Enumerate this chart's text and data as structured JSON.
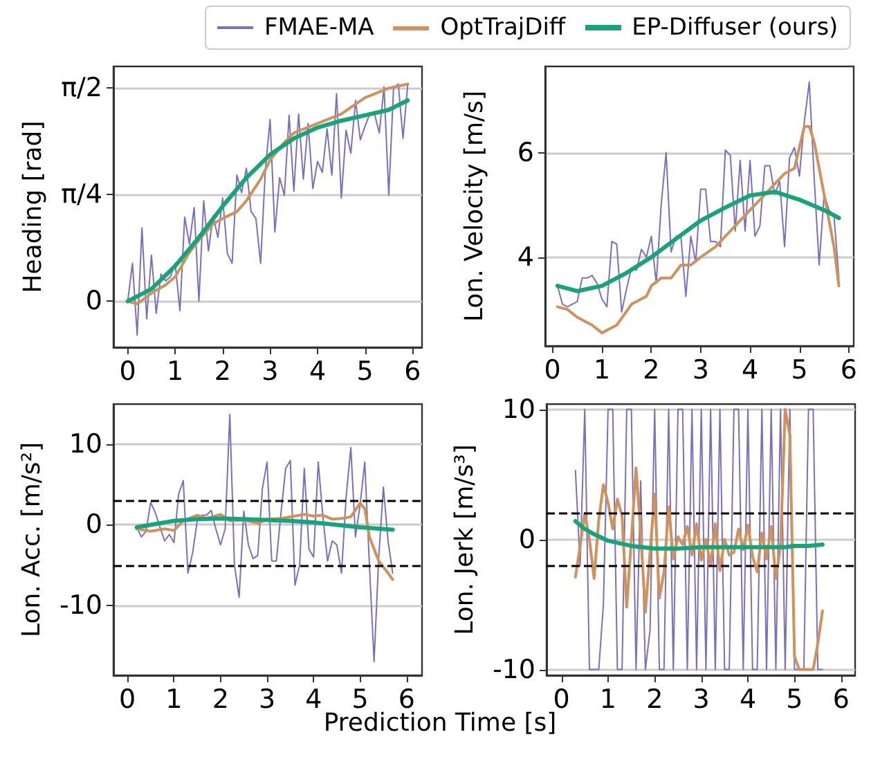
{
  "chart_data": [
    {
      "type": "line",
      "ylabel": "Heading [rad]",
      "xlabel": "Prediction Time [s]",
      "xlim": [
        -0.3,
        6.2
      ],
      "xticks": [
        0,
        1,
        2,
        3,
        4,
        5,
        6
      ],
      "ylim": [
        -0.34,
        1.73
      ],
      "yticks": [
        {
          "value": 0,
          "label": "0"
        },
        {
          "value": 0.785,
          "label": "π/4"
        },
        {
          "value": 1.571,
          "label": "π/2"
        }
      ],
      "grid": "y",
      "legend": "top",
      "marker": "none",
      "line_style": "solid",
      "series": [
        {
          "name": "FMAE-MA",
          "color": "#7b6fbf",
          "x": [
            0,
            0.1,
            0.2,
            0.3,
            0.4,
            0.5,
            0.6,
            0.7,
            0.8,
            0.9,
            1.0,
            1.1,
            1.2,
            1.3,
            1.4,
            1.5,
            1.6,
            1.7,
            1.8,
            1.9,
            2.0,
            2.1,
            2.2,
            2.3,
            2.4,
            2.5,
            2.6,
            2.7,
            2.8,
            2.9,
            3.0,
            3.1,
            3.2,
            3.3,
            3.4,
            3.5,
            3.6,
            3.7,
            3.8,
            3.9,
            4.0,
            4.1,
            4.2,
            4.3,
            4.4,
            4.5,
            4.6,
            4.7,
            4.8,
            4.9,
            5.0,
            5.1,
            5.2,
            5.3,
            5.4,
            5.5,
            5.6,
            5.7,
            5.8,
            5.9
          ],
          "values": [
            0,
            0.28,
            -0.25,
            0.54,
            -0.13,
            0.34,
            -0.09,
            0.2,
            0.15,
            0.18,
            0.28,
            -0.07,
            0.62,
            0.42,
            0.69,
            0.0,
            0.74,
            0.37,
            0.63,
            0.47,
            0.76,
            0.35,
            0.28,
            0.93,
            0.8,
            0.98,
            0.66,
            0.61,
            0.28,
            0.97,
            1.34,
            0.51,
            0.91,
            0.78,
            1.37,
            0.81,
            1.38,
            0.9,
            1.31,
            0.83,
            1.03,
            0.95,
            1.27,
            0.93,
            1.53,
            0.76,
            1.26,
            1.09,
            1.48,
            1.19,
            1.29,
            1.38,
            1.38,
            1.24,
            1.58,
            0.78,
            1.57,
            1.6,
            1.2,
            1.6
          ]
        },
        {
          "name": "OptTrajDiff",
          "color": "#d0925a",
          "x": [
            0,
            0.2,
            0.5,
            0.8,
            1.0,
            1.3,
            1.5,
            1.8,
            2.0,
            2.3,
            2.5,
            2.8,
            3.0,
            3.3,
            3.5,
            4.0,
            4.5,
            5.0,
            5.5,
            5.9
          ],
          "values": [
            0,
            -0.02,
            0.06,
            0.12,
            0.18,
            0.36,
            0.45,
            0.57,
            0.61,
            0.66,
            0.74,
            0.9,
            1.04,
            1.17,
            1.24,
            1.31,
            1.38,
            1.5,
            1.57,
            1.6
          ]
        },
        {
          "name": "EP-Diffuser (ours)",
          "color": "#16a47a",
          "x": [
            0,
            0.5,
            1.0,
            1.5,
            2.0,
            2.5,
            3.0,
            3.5,
            4.0,
            4.5,
            5.0,
            5.5,
            5.9
          ],
          "values": [
            0,
            0.09,
            0.26,
            0.47,
            0.7,
            0.91,
            1.08,
            1.2,
            1.28,
            1.33,
            1.37,
            1.41,
            1.48
          ]
        }
      ]
    },
    {
      "type": "line",
      "ylabel": "Lon. Velocity [m/s]",
      "xlim": [
        -0.15,
        6.1
      ],
      "xticks": [
        0,
        1,
        2,
        3,
        4,
        5,
        6
      ],
      "ylim": [
        2.3,
        7.65
      ],
      "yticks": [
        4,
        6
      ],
      "grid": "y",
      "legend": false,
      "marker": "none",
      "line_style": "solid",
      "series": [
        {
          "color": "#7b6fbf",
          "x": [
            0.1,
            0.2,
            0.3,
            0.4,
            0.5,
            0.6,
            0.7,
            0.8,
            0.9,
            1.0,
            1.1,
            1.2,
            1.3,
            1.4,
            1.5,
            1.6,
            1.7,
            1.8,
            1.9,
            2.0,
            2.1,
            2.2,
            2.3,
            2.4,
            2.5,
            2.6,
            2.7,
            2.8,
            2.9,
            3.0,
            3.1,
            3.2,
            3.3,
            3.4,
            3.5,
            3.6,
            3.7,
            3.8,
            3.9,
            4.0,
            4.1,
            4.2,
            4.3,
            4.4,
            4.5,
            4.6,
            4.7,
            4.8,
            4.9,
            5.0,
            5.1,
            5.2,
            5.3,
            5.4,
            5.5,
            5.6,
            5.7,
            5.8
          ],
          "values": [
            3.45,
            3.1,
            3.05,
            3.1,
            3.15,
            3.6,
            3.6,
            3.65,
            3.5,
            3.2,
            3.05,
            4.3,
            4.25,
            2.95,
            3.4,
            3.8,
            3.75,
            4.15,
            4.0,
            4.4,
            3.5,
            5.0,
            6.0,
            4.1,
            4.4,
            4.4,
            3.25,
            4.4,
            3.9,
            5.3,
            5.3,
            4.3,
            4.3,
            4.2,
            6.05,
            5.95,
            4.5,
            5.85,
            4.5,
            5.85,
            4.4,
            4.6,
            5.75,
            5.75,
            5.2,
            5.45,
            4.2,
            5.9,
            6.1,
            5.55,
            6.6,
            7.35,
            5.5,
            3.85,
            5.2,
            4.9,
            4.8,
            3.6
          ]
        },
        {
          "color": "#d0925a",
          "x": [
            0.1,
            0.3,
            0.5,
            0.8,
            1.0,
            1.3,
            1.6,
            1.9,
            2.0,
            2.2,
            2.4,
            2.6,
            2.8,
            3.0,
            3.3,
            3.6,
            3.9,
            4.2,
            4.5,
            4.7,
            4.9,
            5.0,
            5.1,
            5.2,
            5.3,
            5.5,
            5.7,
            5.8
          ],
          "values": [
            3.05,
            3.0,
            2.85,
            2.7,
            2.55,
            2.7,
            3.1,
            3.25,
            3.45,
            3.6,
            3.6,
            3.85,
            3.85,
            4.0,
            4.2,
            4.5,
            4.8,
            5.1,
            5.4,
            5.6,
            5.7,
            6.1,
            6.5,
            6.5,
            6.2,
            5.2,
            4.2,
            3.45
          ]
        },
        {
          "color": "#16a47a",
          "x": [
            0.1,
            0.5,
            1.0,
            1.5,
            2.0,
            2.5,
            3.0,
            3.5,
            4.0,
            4.5,
            5.0,
            5.5,
            5.8
          ],
          "values": [
            3.45,
            3.35,
            3.45,
            3.7,
            4.0,
            4.35,
            4.7,
            4.95,
            5.18,
            5.25,
            5.1,
            4.9,
            4.75
          ]
        }
      ]
    },
    {
      "type": "line",
      "ylabel": "Lon. Acc. [m/s²]",
      "xlim": [
        -0.3,
        6.33
      ],
      "xticks": [
        0,
        1,
        2,
        3,
        4,
        5,
        6
      ],
      "ylim": [
        -18.7,
        15
      ],
      "yticks": [
        -10,
        0,
        10
      ],
      "grid": "y",
      "legend": false,
      "marker": "none",
      "line_style": "solid",
      "ref_lines": [
        {
          "axis": "y",
          "value": 3,
          "color": "#000000",
          "line_style": "dashed"
        },
        {
          "axis": "y",
          "value": -5,
          "color": "#000000",
          "line_style": "dashed"
        }
      ],
      "series": [
        {
          "color": "#7b6fbf",
          "x": [
            0.2,
            0.3,
            0.4,
            0.5,
            0.6,
            0.7,
            0.8,
            0.9,
            1.0,
            1.1,
            1.2,
            1.3,
            1.4,
            1.5,
            1.6,
            1.7,
            1.8,
            1.9,
            2.0,
            2.1,
            2.2,
            2.3,
            2.4,
            2.5,
            2.6,
            2.7,
            2.8,
            2.9,
            3.0,
            3.1,
            3.2,
            3.3,
            3.4,
            3.5,
            3.6,
            3.7,
            3.8,
            3.9,
            4.0,
            4.1,
            4.2,
            4.3,
            4.4,
            4.5,
            4.6,
            4.7,
            4.8,
            4.9,
            5.0,
            5.1,
            5.2,
            5.3,
            5.4,
            5.5,
            5.6,
            5.7
          ],
          "values": [
            -0.3,
            -1.5,
            -0.8,
            2.8,
            1.5,
            -0.3,
            -2.0,
            -1.2,
            -2.2,
            3.8,
            5.5,
            -6.0,
            -3.5,
            0.5,
            1.2,
            1.2,
            1.8,
            -0.5,
            -2.5,
            -0.5,
            13.7,
            -5.0,
            -9.0,
            1.7,
            -2.5,
            -4.2,
            -3.8,
            4.5,
            7.8,
            -4.5,
            -4.5,
            1.5,
            7.0,
            8.0,
            -7.5,
            -5.0,
            7.0,
            -3.0,
            -4.0,
            7.8,
            1.0,
            -4.5,
            -2.0,
            -2.5,
            -6.0,
            3.5,
            9.6,
            -1.5,
            2.5,
            7.8,
            -5.0,
            -17.0,
            -4.0,
            4.7,
            -2.0,
            -6.0
          ]
        },
        {
          "color": "#d0925a",
          "x": [
            0.2,
            0.5,
            0.8,
            1.0,
            1.2,
            1.5,
            1.7,
            2.0,
            2.2,
            2.5,
            2.8,
            3.0,
            3.3,
            3.6,
            3.8,
            4.0,
            4.2,
            4.4,
            4.6,
            4.8,
            5.0,
            5.1,
            5.2,
            5.4,
            5.6,
            5.7
          ],
          "values": [
            -0.5,
            -0.8,
            -0.5,
            -0.7,
            0.5,
            1.2,
            0.8,
            1.3,
            0.5,
            0.6,
            0.2,
            0.7,
            0.8,
            1.1,
            1.3,
            1.1,
            1.2,
            0.7,
            0.8,
            1.0,
            2.7,
            2.0,
            -1.5,
            -4.5,
            -6.0,
            -6.8
          ]
        },
        {
          "color": "#16a47a",
          "x": [
            0.2,
            0.5,
            1.0,
            1.5,
            2.0,
            2.5,
            3.0,
            3.5,
            4.0,
            4.5,
            5.0,
            5.7
          ],
          "values": [
            -0.3,
            0.0,
            0.5,
            0.7,
            0.8,
            0.7,
            0.6,
            0.5,
            0.3,
            0.0,
            -0.3,
            -0.6
          ]
        }
      ]
    },
    {
      "type": "line",
      "ylabel": "Lon. Jerk [m/s³]",
      "xlim": [
        -0.32,
        6.3
      ],
      "xticks": [
        0,
        1,
        2,
        3,
        4,
        5,
        6
      ],
      "ylim": [
        -10.45,
        10.4
      ],
      "yticks": [
        -10,
        0,
        10
      ],
      "grid": "y",
      "legend": false,
      "marker": "none",
      "line_style": "solid",
      "ref_lines": [
        {
          "axis": "y",
          "value": 2,
          "color": "#000000",
          "line_style": "dashed"
        },
        {
          "axis": "y",
          "value": -2,
          "color": "#000000",
          "line_style": "dashed"
        }
      ],
      "series": [
        {
          "color": "#7b6fbf",
          "x": [
            0.3,
            0.4,
            0.5,
            0.6,
            0.7,
            0.8,
            0.9,
            1.0,
            1.1,
            1.2,
            1.3,
            1.4,
            1.5,
            1.6,
            1.7,
            1.8,
            1.9,
            2.0,
            2.1,
            2.2,
            2.3,
            2.4,
            2.5,
            2.6,
            2.7,
            2.8,
            2.9,
            3.0,
            3.1,
            3.2,
            3.3,
            3.4,
            3.5,
            3.6,
            3.7,
            3.8,
            3.9,
            4.0,
            4.1,
            4.2,
            4.3,
            4.4,
            4.5,
            4.6,
            4.7,
            4.8,
            4.9,
            5.0,
            5.1,
            5.2,
            5.3,
            5.4,
            5.5,
            5.6
          ],
          "values": [
            5.3,
            -2,
            10,
            -10,
            -10,
            -10,
            -5,
            10,
            10,
            -10,
            -10,
            10,
            10,
            -10,
            4.5,
            -10,
            -7,
            10,
            -10,
            -10,
            10,
            -10,
            10,
            10,
            -10,
            10,
            -10,
            10,
            -10,
            10,
            -10,
            10,
            -10,
            -10,
            10,
            10,
            -10,
            10,
            -10,
            -10,
            10,
            -10,
            10,
            -10,
            10,
            -10,
            10,
            -10,
            -10,
            -10,
            10,
            10,
            -10,
            -10
          ]
        },
        {
          "color": "#d0925a",
          "x": [
            0.3,
            0.4,
            0.5,
            0.6,
            0.7,
            0.8,
            0.9,
            1.0,
            1.1,
            1.2,
            1.3,
            1.4,
            1.5,
            1.6,
            1.7,
            1.8,
            1.9,
            2.0,
            2.1,
            2.2,
            2.3,
            2.4,
            2.5,
            2.6,
            2.7,
            2.8,
            2.9,
            3.0,
            3.1,
            3.2,
            3.3,
            3.4,
            3.5,
            3.6,
            3.7,
            3.8,
            3.9,
            4.0,
            4.1,
            4.2,
            4.3,
            4.4,
            4.5,
            4.6,
            4.7,
            4.8,
            4.9,
            5.0,
            5.1,
            5.2,
            5.3,
            5.4,
            5.5,
            5.6
          ],
          "values": [
            -2.9,
            -0.5,
            2.0,
            0.0,
            -3.0,
            1.5,
            4.2,
            2.8,
            0.8,
            3.1,
            1.8,
            -5.2,
            0.0,
            5.5,
            0.5,
            -5.6,
            -1.0,
            3.5,
            -4.5,
            -2.5,
            2.5,
            -1.5,
            0.2,
            -0.4,
            1.0,
            -1.2,
            1.2,
            -1.6,
            0.0,
            -2.0,
            1.2,
            -2.4,
            0.0,
            -1.2,
            -1.0,
            0.8,
            -0.8,
            1.1,
            -1.3,
            -2.5,
            0.5,
            -1.5,
            1.0,
            -3.0,
            -0.5,
            10.0,
            8.0,
            -9.0,
            -10.0,
            -10.0,
            -10.0,
            -10.0,
            -8.0,
            -5.5
          ]
        },
        {
          "color": "#16a47a",
          "x": [
            0.3,
            0.5,
            0.7,
            1.0,
            1.5,
            2.0,
            2.5,
            3.0,
            3.5,
            4.0,
            4.5,
            4.8,
            5.0,
            5.3,
            5.6
          ],
          "values": [
            1.4,
            0.8,
            0.4,
            -0.1,
            -0.5,
            -0.7,
            -0.7,
            -0.6,
            -0.6,
            -0.6,
            -0.6,
            -0.6,
            -0.5,
            -0.5,
            -0.4
          ]
        }
      ]
    }
  ]
}
